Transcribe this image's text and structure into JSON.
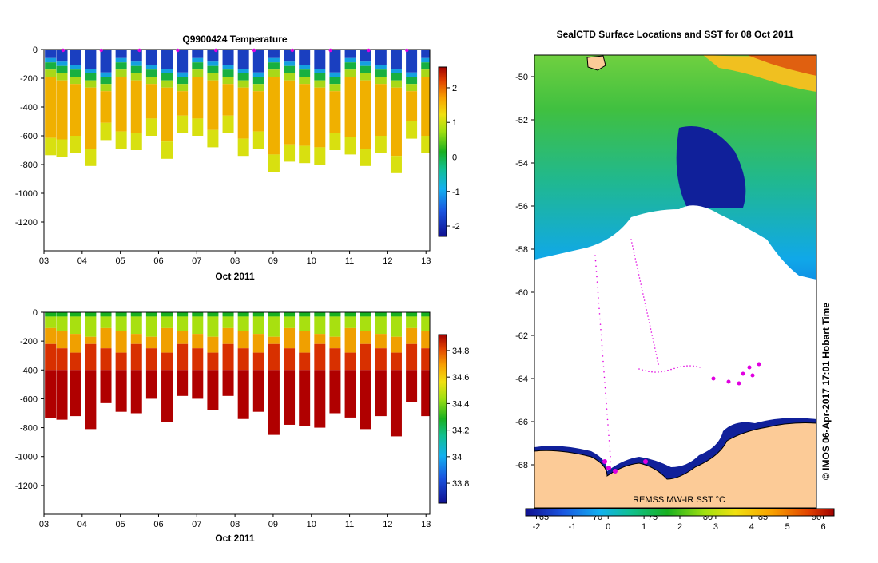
{
  "chart_data": [
    {
      "type": "heatmap",
      "title": "Q9900424  Temperature",
      "xlabel": "Oct 2011",
      "ylabel": "",
      "x_ticks": [
        "03",
        "04",
        "05",
        "06",
        "07",
        "08",
        "09",
        "10",
        "11",
        "12",
        "13"
      ],
      "y_ticks": [
        "0",
        "-200",
        "-400",
        "-600",
        "-800",
        "-1000",
        "-1200"
      ],
      "ylim": [
        -1400,
        0
      ],
      "xlim": [
        3,
        13.1
      ],
      "colorbar": {
        "ticks": [
          "-2",
          "-1",
          "0",
          "1",
          "2"
        ],
        "range": [
          -2.3,
          2.6
        ]
      },
      "profiles": [
        {
          "day": 3.15,
          "max_depth": 735
        },
        {
          "day": 3.45,
          "max_depth": 745
        },
        {
          "day": 3.8,
          "max_depth": 720
        },
        {
          "day": 4.2,
          "max_depth": 810
        },
        {
          "day": 4.6,
          "max_depth": 630
        },
        {
          "day": 5.0,
          "max_depth": 690
        },
        {
          "day": 5.4,
          "max_depth": 700
        },
        {
          "day": 5.8,
          "max_depth": 600
        },
        {
          "day": 6.2,
          "max_depth": 760
        },
        {
          "day": 6.6,
          "max_depth": 580
        },
        {
          "day": 7.0,
          "max_depth": 600
        },
        {
          "day": 7.4,
          "max_depth": 680
        },
        {
          "day": 7.8,
          "max_depth": 580
        },
        {
          "day": 8.2,
          "max_depth": 740
        },
        {
          "day": 8.6,
          "max_depth": 690
        },
        {
          "day": 9.0,
          "max_depth": 850
        },
        {
          "day": 9.4,
          "max_depth": 780
        },
        {
          "day": 9.8,
          "max_depth": 790
        },
        {
          "day": 10.2,
          "max_depth": 800
        },
        {
          "day": 10.6,
          "max_depth": 700
        },
        {
          "day": 11.0,
          "max_depth": 730
        },
        {
          "day": 11.4,
          "max_depth": 810
        },
        {
          "day": 11.8,
          "max_depth": 720
        },
        {
          "day": 12.2,
          "max_depth": 860
        },
        {
          "day": 12.6,
          "max_depth": 620
        },
        {
          "day": 13.0,
          "max_depth": 720
        }
      ]
    },
    {
      "type": "heatmap",
      "title": "",
      "xlabel": "Oct 2011",
      "ylabel": "",
      "x_ticks": [
        "03",
        "04",
        "05",
        "06",
        "07",
        "08",
        "09",
        "10",
        "11",
        "12",
        "13"
      ],
      "y_ticks": [
        "0",
        "-200",
        "-400",
        "-600",
        "-800",
        "-1000",
        "-1200"
      ],
      "ylim": [
        -1400,
        0
      ],
      "xlim": [
        3,
        13.1
      ],
      "colorbar": {
        "ticks": [
          "34.8",
          "34.6",
          "34.4",
          "34.2",
          "34",
          "33.8"
        ],
        "range": [
          33.65,
          34.92
        ]
      }
    },
    {
      "type": "heatmap",
      "title": "SealCTD Surface Locations and SST for 08 Oct 2011",
      "xlabel": "",
      "ylabel": "",
      "y_ticks": [
        "-50",
        "-52",
        "-54",
        "-56",
        "-58",
        "-60",
        "-62",
        "-64",
        "-66",
        "-68"
      ],
      "ylim": [
        -70,
        -49
      ],
      "x_ticks_top": [
        "65",
        "70",
        "75",
        "80",
        "85",
        "90"
      ],
      "colorbar": {
        "ticks": [
          "-2",
          "-1",
          "0",
          "1",
          "2",
          "3",
          "4",
          "5",
          "6"
        ],
        "range": [
          -2.3,
          6.3
        ]
      },
      "product_label": "REMSS MW-IR SST °C",
      "credit": "© IMOS 06-Apr-2017 17:01 Hobart Time"
    }
  ]
}
